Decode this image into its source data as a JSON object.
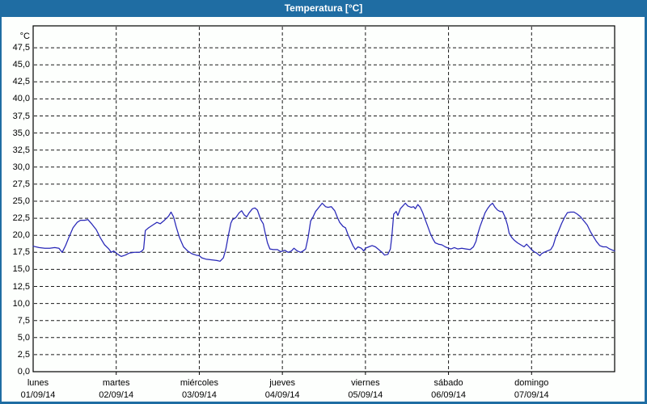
{
  "window": {
    "title": "Temperatura [°C]"
  },
  "colors": {
    "titlebar_bg": "#1f6da3",
    "border": "#1f6da3",
    "title_text": "#ffffff",
    "background": "#fdfffd",
    "frame": "#000000",
    "grid": "#1a1a1a",
    "line": "#2727b7"
  },
  "chart_data": {
    "type": "line",
    "title": "Temperatura [°C]",
    "y_unit_label": "°C",
    "ylabel": "Temperatura",
    "ylim": [
      0,
      50
    ],
    "grid": "dashed",
    "y_ticks": [
      47.5,
      45,
      42.5,
      40,
      37.5,
      35,
      32.5,
      30,
      27.5,
      25,
      22.5,
      20,
      17.5,
      15,
      12.5,
      10,
      7.5,
      5,
      2.5,
      0
    ],
    "y_tick_labels": [
      "47,5",
      "45,0",
      "42,5",
      "40,0",
      "37,5",
      "35,0",
      "32,5",
      "30,0",
      "27,5",
      "25,0",
      "22,5",
      "20,0",
      "17,5",
      "15,0",
      "12,5",
      "10,0",
      "7,5",
      "5,0",
      "2,5",
      "0,0"
    ],
    "x_days": [
      {
        "name": "lunes",
        "date": "01/09/14"
      },
      {
        "name": "martes",
        "date": "02/09/14"
      },
      {
        "name": "miércoles",
        "date": "03/09/14"
      },
      {
        "name": "jueves",
        "date": "04/09/14"
      },
      {
        "name": "viernes",
        "date": "05/09/14"
      },
      {
        "name": "sábado",
        "date": "06/09/14"
      },
      {
        "name": "domingo",
        "date": "07/09/14"
      }
    ],
    "x_unit": "days (0 = lunes 01/09/14 00:00)",
    "series": [
      {
        "name": "Temperatura",
        "color": "#2727b7",
        "points": [
          [
            0.0,
            18.4
          ],
          [
            0.07,
            18.2
          ],
          [
            0.14,
            18.1
          ],
          [
            0.2,
            18.1
          ],
          [
            0.26,
            18.2
          ],
          [
            0.31,
            18.1
          ],
          [
            0.35,
            17.5
          ],
          [
            0.39,
            18.5
          ],
          [
            0.43,
            19.7
          ],
          [
            0.48,
            21.1
          ],
          [
            0.53,
            21.9
          ],
          [
            0.57,
            22.2
          ],
          [
            0.62,
            22.2
          ],
          [
            0.66,
            22.3
          ],
          [
            0.71,
            21.6
          ],
          [
            0.76,
            20.8
          ],
          [
            0.81,
            19.6
          ],
          [
            0.86,
            18.6
          ],
          [
            0.91,
            18.0
          ],
          [
            0.94,
            17.5
          ],
          [
            0.97,
            17.7
          ],
          [
            1.02,
            17.2
          ],
          [
            1.06,
            16.9
          ],
          [
            1.11,
            17.1
          ],
          [
            1.16,
            17.4
          ],
          [
            1.22,
            17.5
          ],
          [
            1.28,
            17.5
          ],
          [
            1.31,
            17.7
          ],
          [
            1.33,
            18.0
          ],
          [
            1.35,
            20.7
          ],
          [
            1.39,
            21.1
          ],
          [
            1.44,
            21.5
          ],
          [
            1.49,
            21.9
          ],
          [
            1.53,
            21.7
          ],
          [
            1.58,
            22.2
          ],
          [
            1.63,
            22.8
          ],
          [
            1.66,
            23.4
          ],
          [
            1.69,
            22.7
          ],
          [
            1.72,
            21.3
          ],
          [
            1.76,
            19.7
          ],
          [
            1.81,
            18.3
          ],
          [
            1.86,
            17.7
          ],
          [
            1.91,
            17.3
          ],
          [
            1.96,
            17.1
          ],
          [
            2.0,
            17.0
          ],
          [
            2.03,
            16.7
          ],
          [
            2.08,
            16.5
          ],
          [
            2.15,
            16.4
          ],
          [
            2.21,
            16.3
          ],
          [
            2.25,
            16.2
          ],
          [
            2.29,
            16.7
          ],
          [
            2.32,
            18.0
          ],
          [
            2.35,
            20.0
          ],
          [
            2.38,
            21.8
          ],
          [
            2.4,
            22.3
          ],
          [
            2.44,
            22.6
          ],
          [
            2.48,
            23.3
          ],
          [
            2.51,
            23.6
          ],
          [
            2.54,
            23.0
          ],
          [
            2.57,
            22.7
          ],
          [
            2.6,
            23.3
          ],
          [
            2.64,
            23.9
          ],
          [
            2.67,
            24.0
          ],
          [
            2.7,
            23.7
          ],
          [
            2.74,
            22.3
          ],
          [
            2.77,
            21.7
          ],
          [
            2.79,
            20.5
          ],
          [
            2.82,
            18.9
          ],
          [
            2.85,
            18.0
          ],
          [
            2.89,
            17.9
          ],
          [
            2.94,
            17.9
          ],
          [
            2.98,
            17.6
          ],
          [
            3.03,
            17.8
          ],
          [
            3.07,
            17.5
          ],
          [
            3.11,
            17.7
          ],
          [
            3.14,
            18.1
          ],
          [
            3.18,
            17.7
          ],
          [
            3.22,
            17.5
          ],
          [
            3.25,
            17.7
          ],
          [
            3.28,
            18.0
          ],
          [
            3.31,
            19.7
          ],
          [
            3.34,
            22.1
          ],
          [
            3.37,
            22.7
          ],
          [
            3.4,
            23.5
          ],
          [
            3.44,
            24.1
          ],
          [
            3.48,
            24.7
          ],
          [
            3.52,
            24.2
          ],
          [
            3.55,
            24.1
          ],
          [
            3.59,
            24.2
          ],
          [
            3.63,
            23.6
          ],
          [
            3.66,
            22.7
          ],
          [
            3.69,
            21.9
          ],
          [
            3.73,
            21.3
          ],
          [
            3.76,
            21.1
          ],
          [
            3.79,
            20.1
          ],
          [
            3.82,
            19.3
          ],
          [
            3.85,
            18.5
          ],
          [
            3.88,
            17.9
          ],
          [
            3.91,
            18.3
          ],
          [
            3.95,
            18.1
          ],
          [
            3.98,
            17.7
          ],
          [
            4.0,
            18.1
          ],
          [
            4.04,
            18.3
          ],
          [
            4.08,
            18.5
          ],
          [
            4.12,
            18.3
          ],
          [
            4.16,
            17.9
          ],
          [
            4.2,
            17.5
          ],
          [
            4.23,
            17.1
          ],
          [
            4.27,
            17.2
          ],
          [
            4.3,
            18.0
          ],
          [
            4.32,
            20.1
          ],
          [
            4.34,
            23.1
          ],
          [
            4.37,
            23.5
          ],
          [
            4.39,
            22.9
          ],
          [
            4.42,
            23.9
          ],
          [
            4.45,
            24.3
          ],
          [
            4.48,
            24.7
          ],
          [
            4.51,
            24.3
          ],
          [
            4.55,
            24.1
          ],
          [
            4.58,
            24.2
          ],
          [
            4.6,
            23.9
          ],
          [
            4.63,
            24.5
          ],
          [
            4.66,
            24.1
          ],
          [
            4.69,
            23.3
          ],
          [
            4.72,
            22.3
          ],
          [
            4.75,
            21.3
          ],
          [
            4.78,
            20.3
          ],
          [
            4.81,
            19.5
          ],
          [
            4.84,
            18.9
          ],
          [
            4.88,
            18.7
          ],
          [
            4.92,
            18.6
          ],
          [
            4.96,
            18.3
          ],
          [
            5.0,
            18.1
          ],
          [
            5.03,
            18.0
          ],
          [
            5.07,
            18.2
          ],
          [
            5.11,
            18.0
          ],
          [
            5.16,
            18.1
          ],
          [
            5.21,
            18.0
          ],
          [
            5.26,
            17.9
          ],
          [
            5.3,
            18.3
          ],
          [
            5.33,
            19.1
          ],
          [
            5.35,
            20.1
          ],
          [
            5.38,
            21.3
          ],
          [
            5.41,
            22.3
          ],
          [
            5.44,
            23.3
          ],
          [
            5.47,
            23.9
          ],
          [
            5.5,
            24.4
          ],
          [
            5.53,
            24.7
          ],
          [
            5.56,
            24.1
          ],
          [
            5.59,
            23.7
          ],
          [
            5.62,
            23.5
          ],
          [
            5.65,
            23.5
          ],
          [
            5.68,
            22.7
          ],
          [
            5.71,
            21.5
          ],
          [
            5.73,
            20.3
          ],
          [
            5.76,
            19.7
          ],
          [
            5.79,
            19.3
          ],
          [
            5.83,
            18.9
          ],
          [
            5.87,
            18.6
          ],
          [
            5.91,
            18.3
          ],
          [
            5.94,
            18.7
          ],
          [
            5.97,
            18.3
          ],
          [
            6.0,
            17.9
          ],
          [
            6.03,
            17.6
          ],
          [
            6.06,
            17.4
          ],
          [
            6.08,
            17.2
          ],
          [
            6.1,
            17.0
          ],
          [
            6.12,
            17.3
          ],
          [
            6.15,
            17.5
          ],
          [
            6.19,
            17.7
          ],
          [
            6.23,
            17.9
          ],
          [
            6.26,
            18.5
          ],
          [
            6.29,
            19.7
          ],
          [
            6.32,
            20.5
          ],
          [
            6.36,
            21.7
          ],
          [
            6.4,
            22.7
          ],
          [
            6.43,
            23.3
          ],
          [
            6.47,
            23.4
          ],
          [
            6.51,
            23.4
          ],
          [
            6.55,
            23.1
          ],
          [
            6.59,
            22.7
          ],
          [
            6.63,
            22.1
          ],
          [
            6.67,
            21.5
          ],
          [
            6.71,
            20.5
          ],
          [
            6.75,
            19.7
          ],
          [
            6.78,
            19.1
          ],
          [
            6.82,
            18.5
          ],
          [
            6.86,
            18.3
          ],
          [
            6.9,
            18.3
          ],
          [
            6.94,
            18.0
          ],
          [
            6.98,
            17.8
          ],
          [
            7.0,
            17.7
          ]
        ]
      }
    ]
  }
}
